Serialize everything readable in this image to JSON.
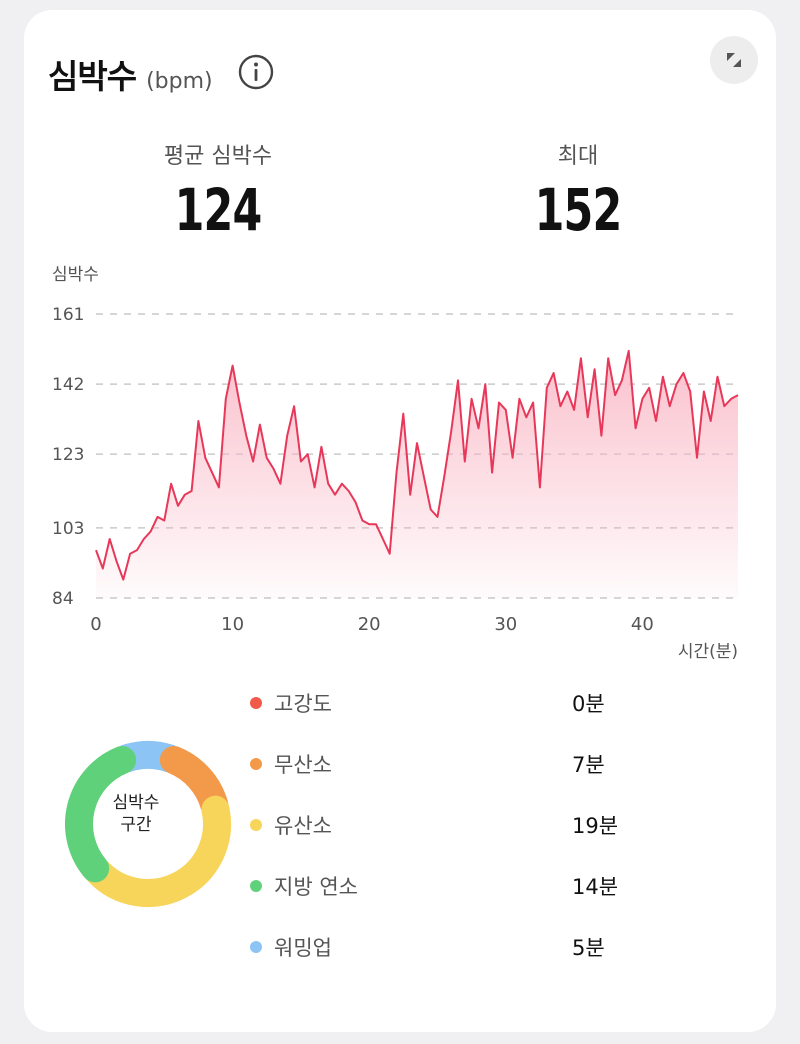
{
  "header": {
    "title": "심박수",
    "unit": "(bpm)"
  },
  "stats": {
    "avg_label": "평균 심박수",
    "avg_value": "124",
    "max_label": "최대",
    "max_value": "152"
  },
  "icons": {
    "info": "info-icon",
    "expand": "collapse-icon"
  },
  "chart_data": {
    "type": "area",
    "ylabel": "심박수",
    "xlabel": "시간(분)",
    "ylim": [
      84,
      161
    ],
    "xlim": [
      0,
      47
    ],
    "y_ticks": [
      161,
      142,
      123,
      103,
      84
    ],
    "x_ticks": [
      0,
      10,
      20,
      30,
      40
    ],
    "grid": "horizontal dashed",
    "color": "#e8385a",
    "fill_color": "#f9b5c3",
    "series": [
      {
        "x": [
          0,
          0.5,
          1,
          1.5,
          2,
          2.5,
          3,
          3.5,
          4,
          4.5,
          5,
          5.5,
          6,
          6.5,
          7,
          7.5,
          8,
          8.5,
          9,
          9.5,
          10,
          10.5,
          11,
          11.5,
          12,
          12.5,
          13,
          13.5,
          14,
          14.5,
          15,
          15.5,
          16,
          16.5,
          17,
          17.5,
          18,
          18.5,
          19,
          19.5,
          20,
          20.5,
          21,
          21.5,
          22,
          22.5,
          23,
          23.5,
          24,
          24.5,
          25,
          25.5,
          26,
          26.5,
          27,
          27.5,
          28,
          28.5,
          29,
          29.5,
          30,
          30.5,
          31,
          31.5,
          32,
          32.5,
          33,
          33.5,
          34,
          34.5,
          35,
          35.5,
          36,
          36.5,
          37,
          37.5,
          38,
          38.5,
          39,
          39.5,
          40,
          40.5,
          41,
          41.5,
          42,
          42.5,
          43,
          43.5,
          44,
          44.5,
          45,
          45.5,
          46,
          46.5,
          47
        ],
        "y": [
          97,
          92,
          100,
          94,
          89,
          96,
          97,
          100,
          102,
          106,
          105,
          115,
          109,
          112,
          113,
          132,
          122,
          118,
          114,
          138,
          147,
          137,
          128,
          121,
          131,
          122,
          119,
          115,
          128,
          136,
          121,
          123,
          114,
          125,
          115,
          112,
          115,
          113,
          110,
          105,
          104,
          104,
          100,
          96,
          118,
          134,
          112,
          126,
          117,
          108,
          106,
          117,
          129,
          143,
          121,
          138,
          130,
          142,
          118,
          137,
          135,
          122,
          138,
          133,
          137,
          114,
          141,
          145,
          136,
          140,
          135,
          149,
          133,
          146,
          128,
          149,
          139,
          143,
          151,
          130,
          138,
          141,
          132,
          144,
          136,
          142,
          145,
          140,
          122,
          140,
          132,
          144,
          136,
          138,
          139
        ]
      }
    ]
  },
  "zones": {
    "title": "심박수 구간",
    "title_line1": "심박수",
    "title_line2": "구간",
    "items": [
      {
        "name": "고강도",
        "value": "0분",
        "minutes": 0,
        "color": "#f15a4a"
      },
      {
        "name": "무산소",
        "value": "7분",
        "minutes": 7,
        "color": "#f29a4a"
      },
      {
        "name": "유산소",
        "value": "19분",
        "minutes": 19,
        "color": "#f7d45a"
      },
      {
        "name": "지방 연소",
        "value": "14분",
        "minutes": 14,
        "color": "#5fd17a"
      },
      {
        "name": "워밍업",
        "value": "5분",
        "minutes": 5,
        "color": "#8cc4f5"
      }
    ]
  }
}
